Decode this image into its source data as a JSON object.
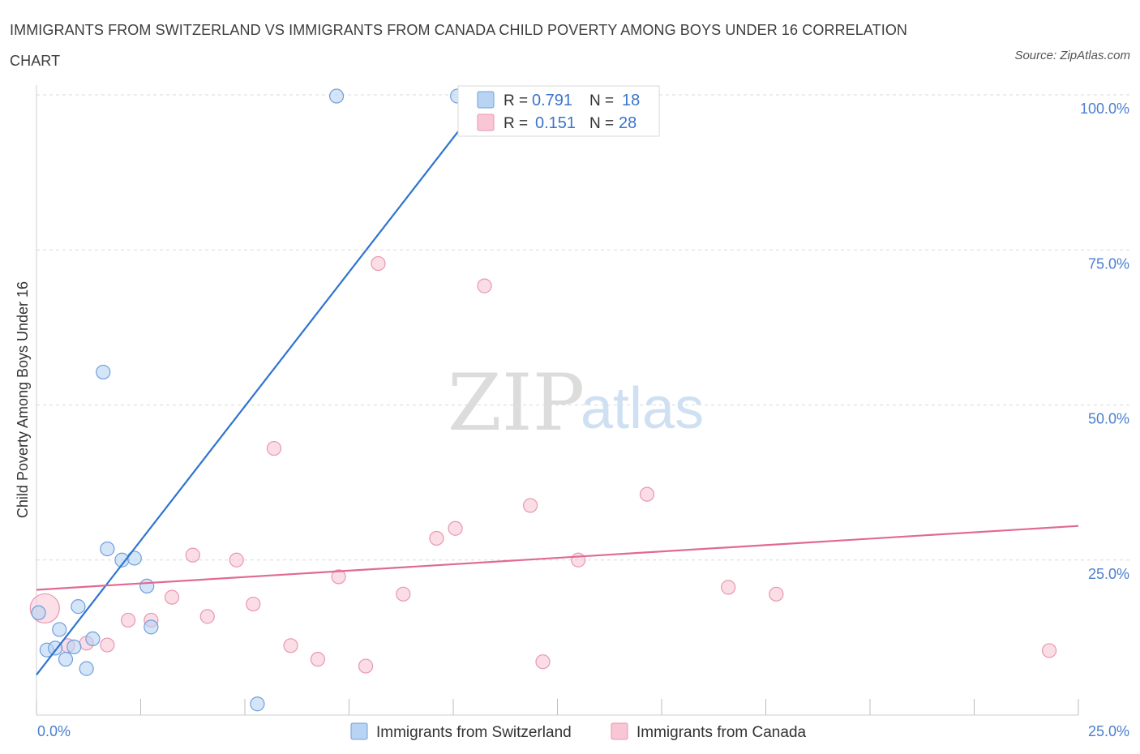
{
  "title": "IMMIGRANTS FROM SWITZERLAND VS IMMIGRANTS FROM CANADA CHILD POVERTY AMONG BOYS UNDER 16 CORRELATION CHART",
  "source": "Source: ZipAtlas.com",
  "watermark": {
    "zip": "ZIP",
    "atlas": "atlas"
  },
  "colors": {
    "switzerland_fill": "#b9d4f3",
    "switzerland_stroke": "#6f9fdc",
    "switzerland_line": "#2f74d0",
    "canada_fill": "#f8c6d5",
    "canada_stroke": "#e897b1",
    "canada_line": "#e06a93",
    "tick_text": "#4a7fcf",
    "grid": "#d9d9d9"
  },
  "legend_top": {
    "rows": [
      {
        "r_label": "R =",
        "r_value": "0.791",
        "n_label": "N =",
        "n_value": "18"
      },
      {
        "r_label": "R =",
        "r_value": "0.151",
        "n_label": "N =",
        "n_value": "28"
      }
    ]
  },
  "legend_bottom": [
    "Immigrants from Switzerland",
    "Immigrants from Canada"
  ],
  "chart_data": {
    "type": "scatter",
    "title": "IMMIGRANTS FROM SWITZERLAND VS IMMIGRANTS FROM CANADA CHILD POVERTY AMONG BOYS UNDER 16 CORRELATION CHART",
    "xlabel": "",
    "ylabel": "Child Poverty Among Boys Under 16",
    "xlim": [
      0,
      25
    ],
    "ylim": [
      0,
      100
    ],
    "x_tick_labels": [
      "0.0%",
      "25.0%"
    ],
    "y_tick_labels": [
      "25.0%",
      "50.0%",
      "75.0%",
      "100.0%"
    ],
    "y_ticks": [
      25,
      50,
      75,
      100
    ],
    "grid": true,
    "legend_position": "top-center",
    "series": [
      {
        "name": "Immigrants from Switzerland",
        "R": 0.791,
        "N": 18,
        "trend": {
          "x": [
            0,
            10.8
          ],
          "y": [
            6.5,
            100
          ]
        },
        "points": [
          {
            "x": 0.05,
            "y": 16.5
          },
          {
            "x": 0.25,
            "y": 10.5
          },
          {
            "x": 0.45,
            "y": 10.8
          },
          {
            "x": 0.55,
            "y": 13.8
          },
          {
            "x": 0.7,
            "y": 9.0
          },
          {
            "x": 0.9,
            "y": 11.0
          },
          {
            "x": 1.0,
            "y": 17.5
          },
          {
            "x": 1.2,
            "y": 7.5
          },
          {
            "x": 1.35,
            "y": 12.3
          },
          {
            "x": 1.6,
            "y": 55.3
          },
          {
            "x": 1.7,
            "y": 26.8
          },
          {
            "x": 2.05,
            "y": 25.0
          },
          {
            "x": 2.35,
            "y": 25.3
          },
          {
            "x": 2.65,
            "y": 20.8
          },
          {
            "x": 2.75,
            "y": 14.2
          },
          {
            "x": 5.3,
            "y": 1.8
          },
          {
            "x": 7.2,
            "y": 99.8
          },
          {
            "x": 10.1,
            "y": 99.8
          }
        ]
      },
      {
        "name": "Immigrants from Canada",
        "R": 0.151,
        "N": 28,
        "trend": {
          "x": [
            0,
            25
          ],
          "y": [
            20.2,
            30.5
          ]
        },
        "points": [
          {
            "x": 0.2,
            "y": 17.2,
            "large": true
          },
          {
            "x": 0.75,
            "y": 11.2
          },
          {
            "x": 1.2,
            "y": 11.6
          },
          {
            "x": 1.7,
            "y": 11.3
          },
          {
            "x": 2.2,
            "y": 15.3
          },
          {
            "x": 2.75,
            "y": 15.3
          },
          {
            "x": 3.25,
            "y": 19.0
          },
          {
            "x": 3.75,
            "y": 25.8
          },
          {
            "x": 4.1,
            "y": 15.9
          },
          {
            "x": 4.8,
            "y": 25.0
          },
          {
            "x": 5.2,
            "y": 17.9
          },
          {
            "x": 5.7,
            "y": 43.0
          },
          {
            "x": 6.1,
            "y": 11.2
          },
          {
            "x": 6.75,
            "y": 9.0
          },
          {
            "x": 7.25,
            "y": 22.3
          },
          {
            "x": 7.9,
            "y": 7.9
          },
          {
            "x": 8.2,
            "y": 72.8
          },
          {
            "x": 8.8,
            "y": 19.5
          },
          {
            "x": 9.6,
            "y": 28.5
          },
          {
            "x": 10.05,
            "y": 30.1
          },
          {
            "x": 10.75,
            "y": 69.2
          },
          {
            "x": 11.85,
            "y": 33.8
          },
          {
            "x": 12.15,
            "y": 8.6
          },
          {
            "x": 13.0,
            "y": 25.0
          },
          {
            "x": 14.65,
            "y": 35.6
          },
          {
            "x": 16.6,
            "y": 20.6
          },
          {
            "x": 17.75,
            "y": 19.5
          },
          {
            "x": 24.3,
            "y": 10.4
          }
        ]
      }
    ]
  }
}
